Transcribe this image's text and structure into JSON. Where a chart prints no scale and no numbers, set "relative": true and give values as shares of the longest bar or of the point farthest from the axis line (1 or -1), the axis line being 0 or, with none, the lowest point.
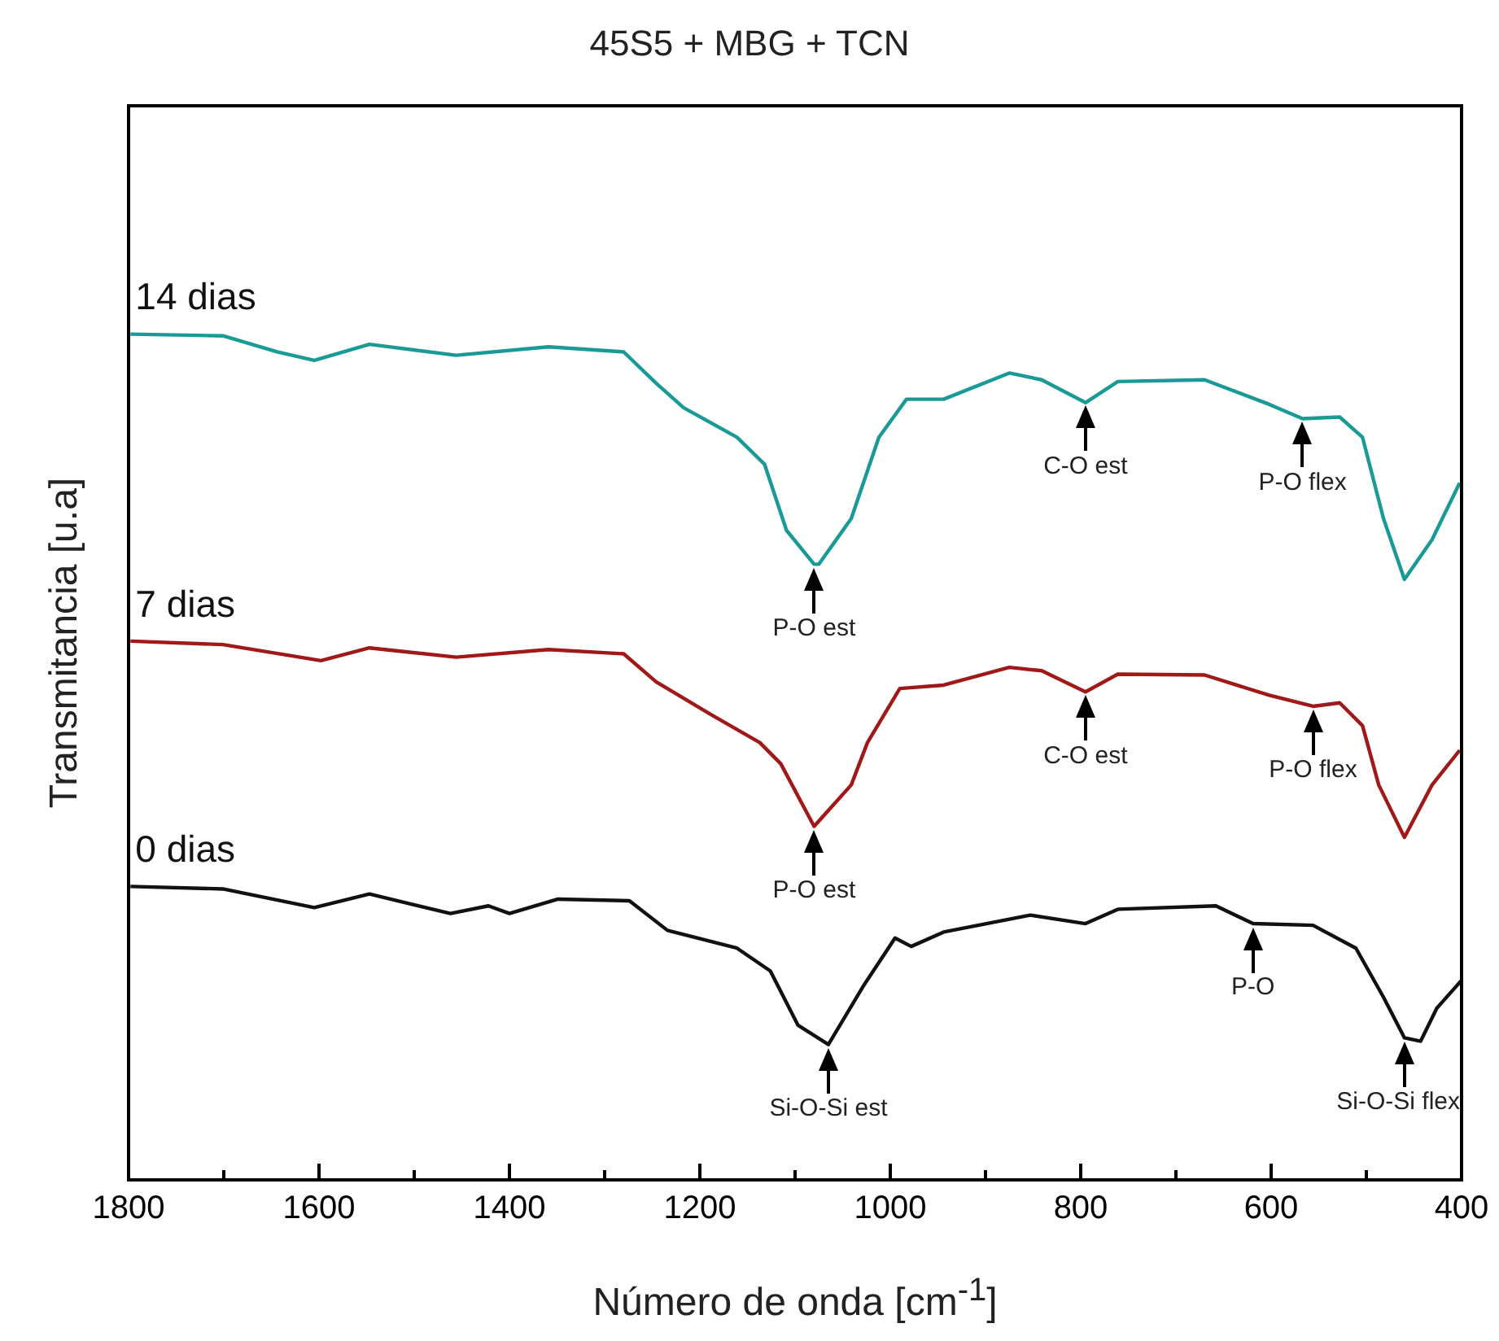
{
  "chart_data": {
    "type": "line",
    "title": "45S5 + MBG + TCN",
    "xlabel": "Número de onda [cm$^{-1}$]",
    "ylabel": "Transmitancia [u.a]",
    "relative": true,
    "legend": false,
    "grid": false,
    "marker": "none",
    "line_style": "solid",
    "xlim": [
      1800,
      400
    ],
    "xticks": [
      1800,
      {
        "value": 1700,
        "label": null
      },
      1600,
      {
        "value": 1500,
        "label": null
      },
      1400,
      {
        "value": 1300,
        "label": null
      },
      1200,
      {
        "value": 1100,
        "label": null
      },
      1000,
      {
        "value": 900,
        "label": null
      },
      800,
      {
        "value": 700,
        "label": null
      },
      600,
      {
        "value": 500,
        "label": null
      },
      400
    ],
    "series": [
      {
        "name": "14 dias",
        "color": "#1a9a96",
        "x": [
          1798,
          1701,
          1644,
          1605,
          1547,
          1456,
          1359,
          1280,
          1246,
          1217,
          1161,
          1132,
          1109,
          1080,
          1075,
          1041,
          1012,
          983,
          944,
          875,
          841,
          795,
          761,
          670,
          602,
          567,
          528,
          504,
          482,
          460,
          431,
          402
        ],
        "values": [
          1.0,
          0.998,
          0.979,
          0.969,
          0.988,
          0.975,
          0.985,
          0.979,
          0.942,
          0.913,
          0.878,
          0.846,
          0.768,
          0.728,
          0.728,
          0.782,
          0.878,
          0.923,
          0.923,
          0.954,
          0.946,
          0.919,
          0.944,
          0.946,
          0.917,
          0.9,
          0.902,
          0.878,
          0.782,
          0.71,
          0.757,
          0.824
        ]
      },
      {
        "name": "7 dias",
        "color": "#a01818",
        "x": [
          1798,
          1701,
          1598,
          1547,
          1456,
          1359,
          1280,
          1246,
          1188,
          1137,
          1115,
          1080,
          1041,
          1024,
          990,
          944,
          875,
          841,
          795,
          761,
          670,
          602,
          556,
          528,
          504,
          487,
          460,
          431,
          402
        ],
        "values": [
          0.637,
          0.633,
          0.614,
          0.629,
          0.618,
          0.627,
          0.622,
          0.589,
          0.55,
          0.517,
          0.492,
          0.418,
          0.467,
          0.517,
          0.581,
          0.585,
          0.606,
          0.602,
          0.577,
          0.598,
          0.597,
          0.573,
          0.56,
          0.564,
          0.537,
          0.467,
          0.405,
          0.467,
          0.508
        ]
      },
      {
        "name": "0 dias",
        "color": "#111111",
        "x": [
          1798,
          1701,
          1605,
          1547,
          1462,
          1422,
          1400,
          1349,
          1274,
          1234,
          1161,
          1126,
          1097,
          1065,
          1029,
          995,
          978,
          944,
          853,
          795,
          761,
          658,
          619,
          556,
          511,
          482,
          460,
          443,
          426,
          400
        ],
        "values": [
          0.347,
          0.344,
          0.322,
          0.338,
          0.315,
          0.324,
          0.315,
          0.332,
          0.33,
          0.295,
          0.274,
          0.247,
          0.183,
          0.16,
          0.228,
          0.286,
          0.276,
          0.293,
          0.313,
          0.303,
          0.32,
          0.324,
          0.303,
          0.301,
          0.274,
          0.216,
          0.168,
          0.164,
          0.203,
          0.236
        ]
      }
    ],
    "annotations": [
      {
        "text": "P-O est",
        "x": 1080,
        "y": 0.728
      },
      {
        "text": "C-O est",
        "x": 795,
        "y": 0.919
      },
      {
        "text": "P-O flex",
        "x": 567,
        "y": 0.9
      },
      {
        "text": "P-O est",
        "x": 1080,
        "y": 0.418
      },
      {
        "text": "C-O est",
        "x": 795,
        "y": 0.577
      },
      {
        "text": "P-O flex",
        "x": 556,
        "y": 0.56
      },
      {
        "text": "Si-O-Si est",
        "x": 1065,
        "y": 0.16
      },
      {
        "text": "P-O",
        "x": 619,
        "y": 0.303
      },
      {
        "text": "Si-O-Si flex",
        "x": 460,
        "y": 0.168
      }
    ]
  }
}
